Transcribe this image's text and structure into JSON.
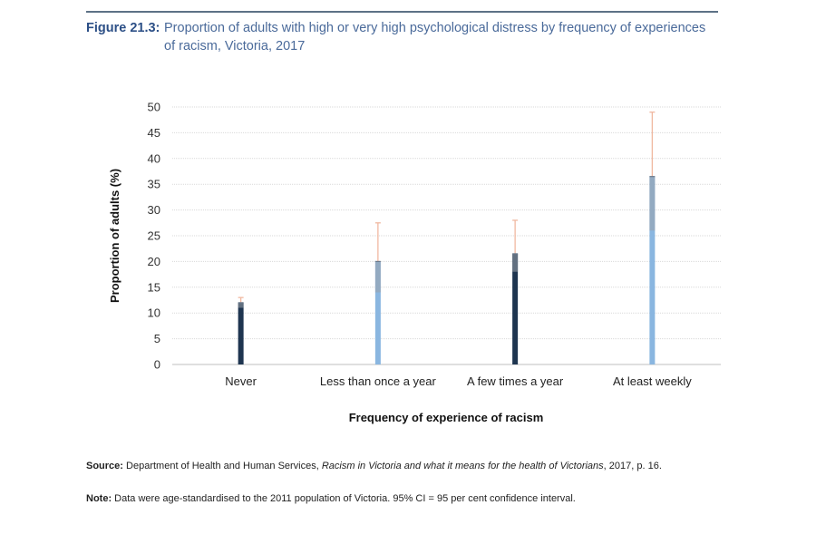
{
  "figure": {
    "label": "Figure 21.3:",
    "title": "Proportion of adults with high or very high psychological distress by frequency of experiences of racism, Victoria, 2017"
  },
  "source": {
    "label": "Source:",
    "text_before": "Department of Health and Human Services, ",
    "title_italic": "Racism in Victoria and what it means for the health of Victorians",
    "text_after": ", 2017, p. 16."
  },
  "note": {
    "label": "Note:",
    "text": "Data were age-standardised to the 2011 population of Victoria. 95% CI = 95 per cent confidence interval."
  },
  "chart_data": {
    "type": "bar",
    "title": "Proportion of adults with high or very high psychological distress by frequency of experiences of racism, Victoria, 2017",
    "xlabel": "Frequency of experience of racism",
    "ylabel": "Proportion of adults (%)",
    "ylim": [
      0,
      50
    ],
    "yticks": [
      0,
      5,
      10,
      15,
      20,
      25,
      30,
      35,
      40,
      45,
      50
    ],
    "grid": true,
    "categories": [
      "Never",
      "Less than once a year",
      "A few times a year",
      "At least weekly"
    ],
    "values": [
      12,
      20,
      21.5,
      36.5
    ],
    "ci_lower": [
      11,
      14,
      18,
      26
    ],
    "ci_upper": [
      13,
      27.5,
      28,
      49
    ],
    "bar_colors": [
      "#1e3550",
      "#8ab6e0",
      "#1e3550",
      "#8ab6e0"
    ],
    "ci_upper_color": "#f0b8a0",
    "ci_lower_color": "#9aa0a8"
  }
}
